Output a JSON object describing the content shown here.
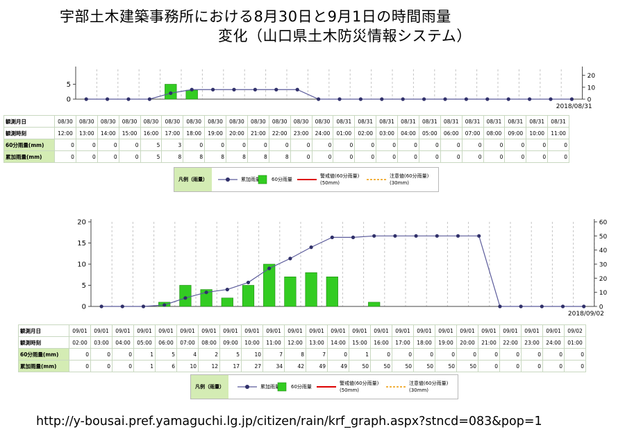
{
  "title": {
    "line1": "宇部土木建築事務所における8月30日と9月1日の時間雨量",
    "line2": "変化（山口県土木防災情報システム）"
  },
  "source_url": "http://y-bousai.pref.yamaguchi.lg.jp/citizen/rain/krf_graph.aspx?stncd=083&pop=1",
  "colors": {
    "bar": "#33cc22",
    "line": "#30306a",
    "warning": "#dd0000",
    "caution": "#ee9900",
    "header_green": "#d4ecb4"
  },
  "legend": {
    "head": "凡例（雨量）",
    "cumulative": "累加雨量",
    "hourly": "60分雨量",
    "warning": "警戒値(60分雨量) (50mm)",
    "caution": "注意値(60分雨量) (30mm)"
  },
  "row_labels": {
    "date": "観測月日",
    "time": "観測時刻",
    "hourly": "60分雨量(mm)",
    "cumulative": "累加雨量(mm)"
  },
  "chart_data": [
    {
      "type": "bar",
      "end_label": "2018/08/31",
      "ylim_left": [
        0,
        10
      ],
      "yticks_left": [
        0,
        5
      ],
      "ylim_right": [
        0,
        25
      ],
      "yticks_right": [
        0,
        10,
        20
      ],
      "dates": [
        "08/30",
        "08/30",
        "08/30",
        "08/30",
        "08/30",
        "08/30",
        "08/30",
        "08/30",
        "08/30",
        "08/30",
        "08/30",
        "08/30",
        "08/30",
        "08/31",
        "08/31",
        "08/31",
        "08/31",
        "08/31",
        "08/31",
        "08/31",
        "08/31",
        "08/31",
        "08/31",
        "08/31"
      ],
      "categories": [
        "12:00",
        "13:00",
        "14:00",
        "15:00",
        "16:00",
        "17:00",
        "18:00",
        "19:00",
        "20:00",
        "21:00",
        "22:00",
        "23:00",
        "24:00",
        "01:00",
        "02:00",
        "03:00",
        "04:00",
        "05:00",
        "06:00",
        "07:00",
        "08:00",
        "09:00",
        "10:00",
        "11:00"
      ],
      "series": [
        {
          "name": "60分雨量",
          "values": [
            0,
            0,
            0,
            0,
            5,
            3,
            0,
            0,
            0,
            0,
            0,
            0,
            0,
            0,
            0,
            0,
            0,
            0,
            0,
            0,
            0,
            0,
            0,
            0
          ]
        },
        {
          "name": "累加雨量",
          "values": [
            0,
            0,
            0,
            0,
            5,
            8,
            8,
            8,
            8,
            8,
            8,
            0,
            0,
            0,
            0,
            0,
            0,
            0,
            0,
            0,
            0,
            0,
            0,
            0
          ]
        }
      ]
    },
    {
      "type": "bar",
      "end_label": "2018/09/02",
      "ylim_left": [
        0,
        20
      ],
      "yticks_left": [
        0,
        5,
        10,
        15,
        20
      ],
      "ylim_right": [
        0,
        60
      ],
      "yticks_right": [
        0,
        10,
        20,
        30,
        40,
        50,
        60
      ],
      "dates": [
        "09/01",
        "09/01",
        "09/01",
        "09/01",
        "09/01",
        "09/01",
        "09/01",
        "09/01",
        "09/01",
        "09/01",
        "09/01",
        "09/01",
        "09/01",
        "09/01",
        "09/01",
        "09/01",
        "09/01",
        "09/01",
        "09/01",
        "09/01",
        "09/01",
        "09/01",
        "09/01",
        "09/02"
      ],
      "categories": [
        "02:00",
        "03:00",
        "04:00",
        "05:00",
        "06:00",
        "07:00",
        "08:00",
        "09:00",
        "10:00",
        "11:00",
        "12:00",
        "13:00",
        "14:00",
        "15:00",
        "16:00",
        "17:00",
        "18:00",
        "19:00",
        "20:00",
        "21:00",
        "22:00",
        "23:00",
        "24:00",
        "01:00"
      ],
      "series": [
        {
          "name": "60分雨量",
          "values": [
            0,
            0,
            0,
            1,
            5,
            4,
            2,
            5,
            10,
            7,
            8,
            7,
            0,
            1,
            0,
            0,
            0,
            0,
            0,
            0,
            0,
            0,
            0,
            0
          ]
        },
        {
          "name": "累加雨量",
          "values": [
            0,
            0,
            0,
            1,
            6,
            10,
            12,
            17,
            27,
            34,
            42,
            49,
            49,
            50,
            50,
            50,
            50,
            50,
            50,
            0,
            0,
            0,
            0,
            0
          ]
        }
      ]
    }
  ]
}
